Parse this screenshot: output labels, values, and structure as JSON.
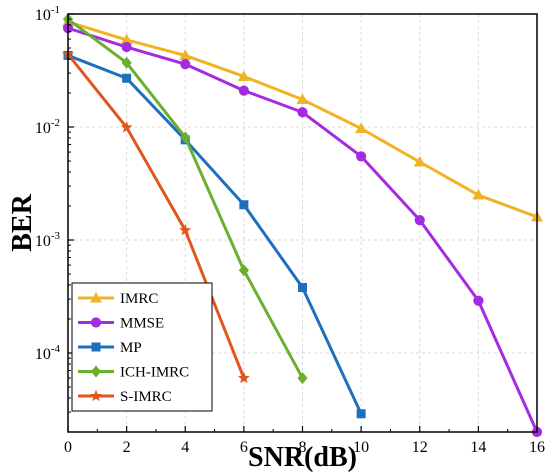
{
  "chart_data": {
    "type": "line",
    "xlabel": "SNR(dB)",
    "ylabel": "BER",
    "xlim": [
      0,
      16
    ],
    "ylim": [
      2e-05,
      0.1
    ],
    "yscale": "log",
    "xticks": [
      "0",
      "2",
      "4",
      "6",
      "8",
      "10",
      "12",
      "14",
      "16"
    ],
    "yticks": [
      {
        "value": 0.1,
        "base": "10",
        "exp": "-1"
      },
      {
        "value": 0.01,
        "base": "10",
        "exp": "-2"
      },
      {
        "value": 0.001,
        "base": "10",
        "exp": "-3"
      },
      {
        "value": 0.0001,
        "base": "10",
        "exp": "-4"
      }
    ],
    "grid": true,
    "legend_position": "bottom-left",
    "series": [
      {
        "name": "IMRC",
        "color": "#F0B323",
        "marker": "triangle",
        "x": [
          0,
          2,
          4,
          6,
          8,
          10,
          12,
          14,
          16
        ],
        "y": [
          0.085,
          0.059,
          0.043,
          0.028,
          0.0175,
          0.0097,
          0.0049,
          0.0025,
          0.0016
        ]
      },
      {
        "name": "MMSE",
        "color": "#A52BE0",
        "marker": "circle",
        "x": [
          0,
          2,
          4,
          6,
          8,
          10,
          12,
          14,
          16
        ],
        "y": [
          0.075,
          0.051,
          0.036,
          0.021,
          0.0135,
          0.0055,
          0.0015,
          0.00029,
          2e-05
        ]
      },
      {
        "name": "MP",
        "color": "#1F6FBF",
        "marker": "square",
        "x": [
          0,
          2,
          4,
          6,
          8,
          10
        ],
        "y": [
          0.043,
          0.027,
          0.0077,
          0.00205,
          0.00038,
          2.9e-05
        ]
      },
      {
        "name": "ICH-IMRC",
        "color": "#6BAF2F",
        "marker": "diamond",
        "x": [
          0,
          2,
          4,
          6,
          8
        ],
        "y": [
          0.09,
          0.037,
          0.0081,
          0.00054,
          6e-05
        ]
      },
      {
        "name": "S-IMRC",
        "color": "#E0561E",
        "marker": "star",
        "x": [
          0,
          2,
          4,
          6
        ],
        "y": [
          0.044,
          0.0099,
          0.00122,
          6e-05
        ]
      }
    ]
  }
}
